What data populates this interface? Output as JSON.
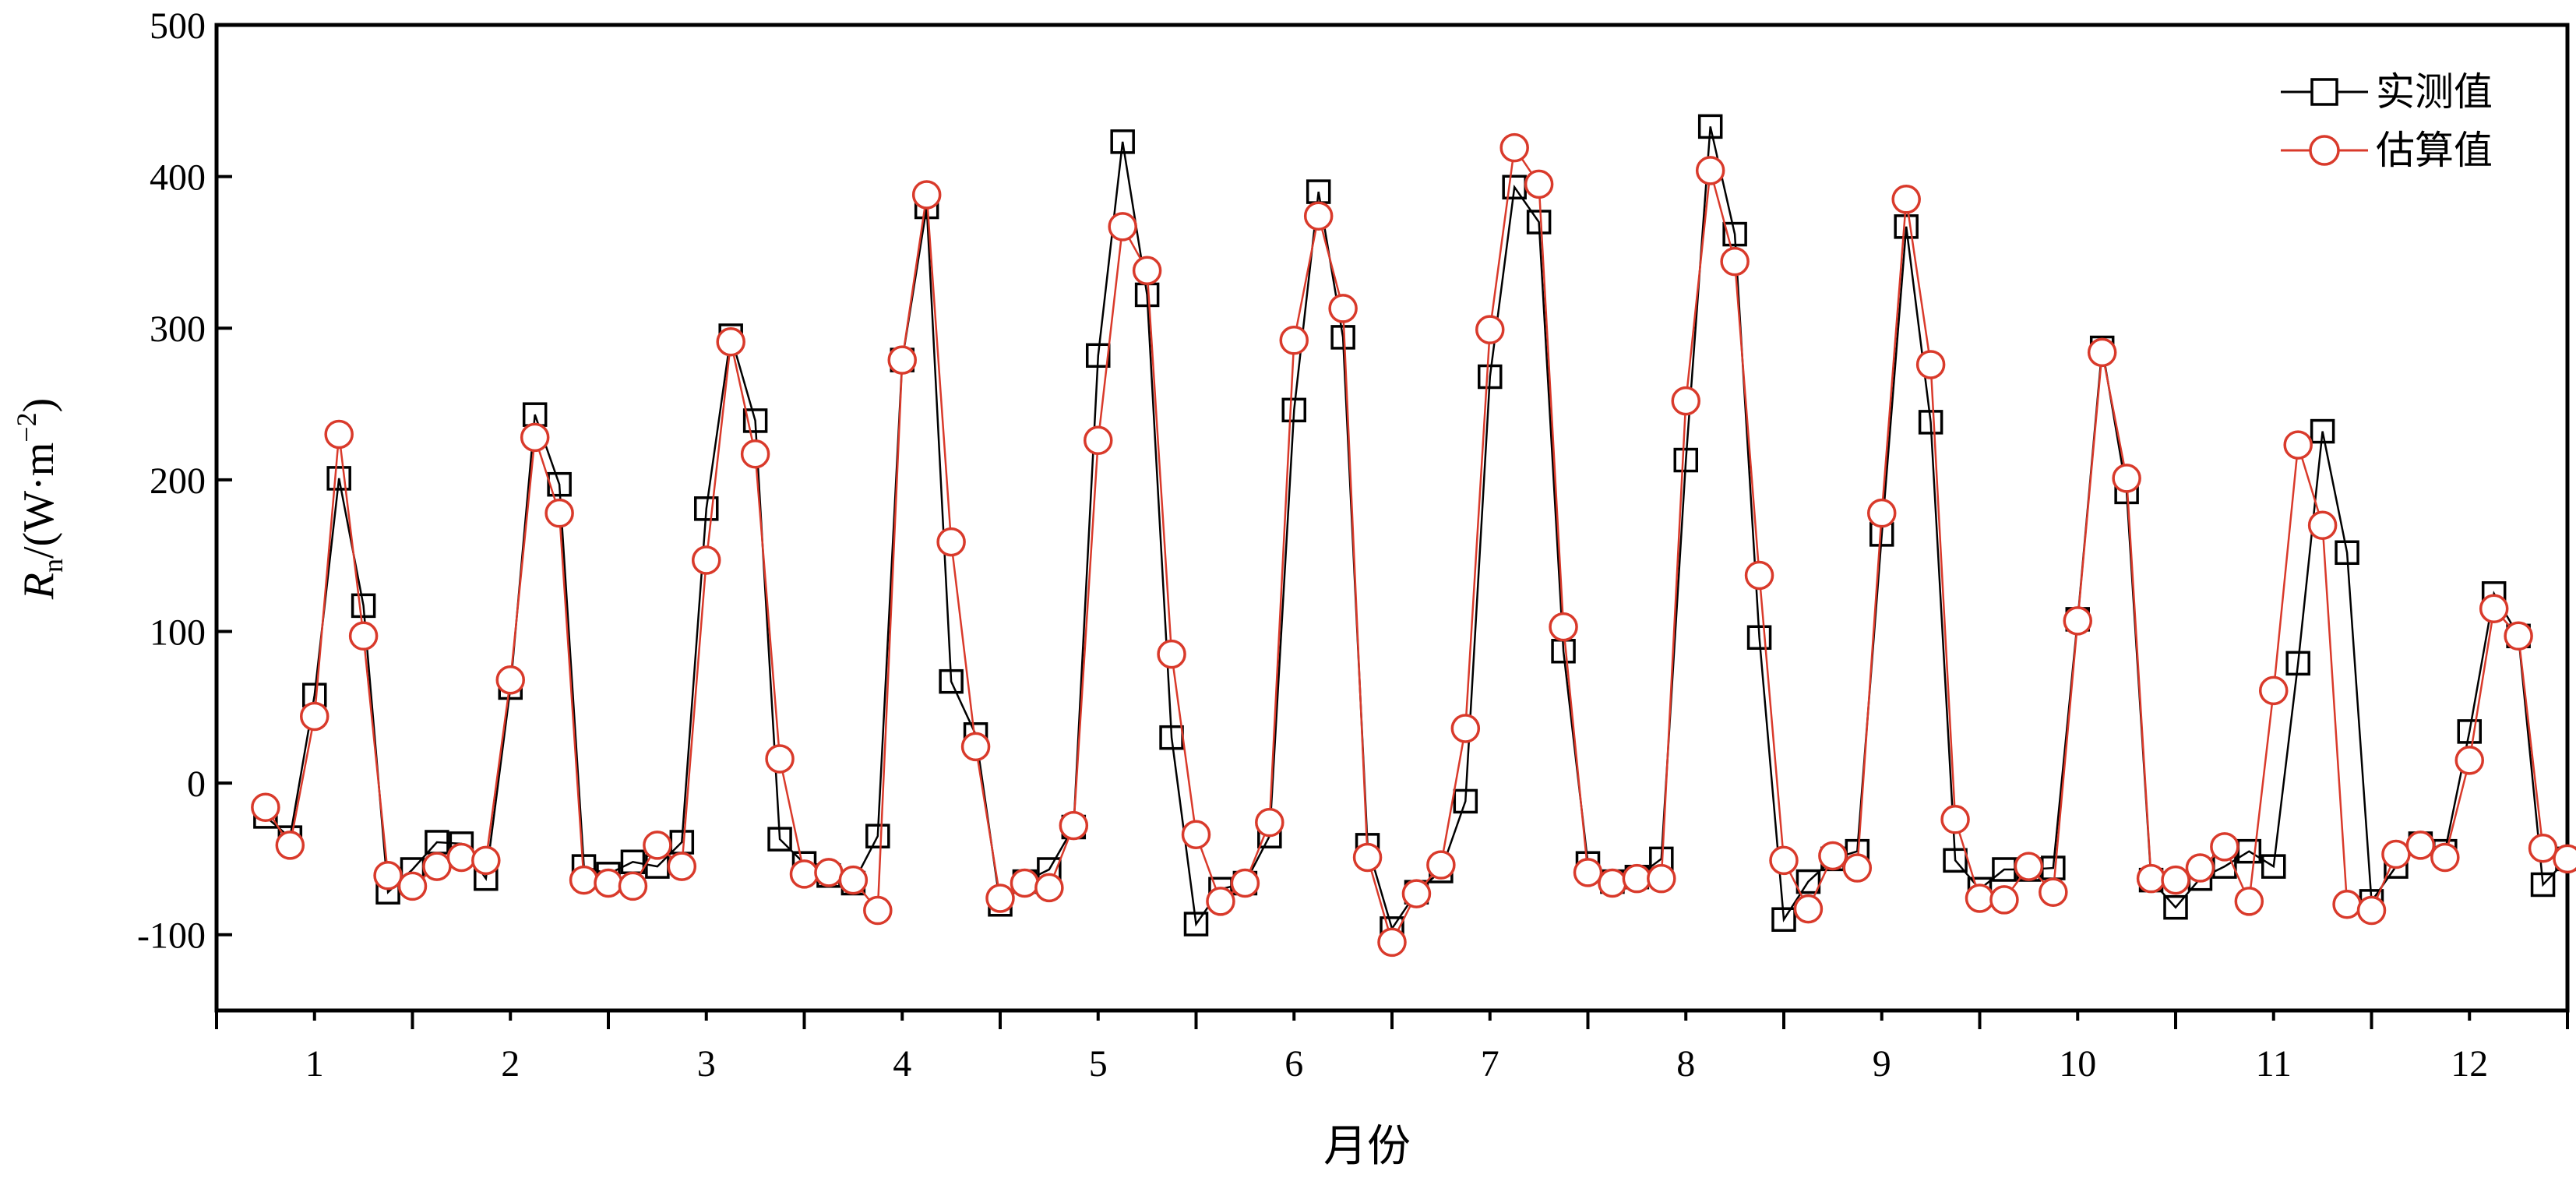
{
  "chart_data": {
    "type": "line",
    "xlabel": "月份",
    "ylabel_main": "R",
    "ylabel_sub": "n",
    "ylabel_unit": "/(W·m",
    "ylabel_sup": "−2",
    "ylabel_close": ")",
    "ylim": [
      -150,
      500
    ],
    "xlim": [
      0.5,
      12.5
    ],
    "yticks": [
      -100,
      0,
      100,
      200,
      300,
      400,
      500
    ],
    "month_labels": [
      "1",
      "2",
      "3",
      "4",
      "5",
      "6",
      "7",
      "8",
      "9",
      "10",
      "11",
      "12"
    ],
    "grid": false,
    "legend_position": "top-right",
    "series": [
      {
        "name": "实测值",
        "color": "#000000",
        "marker": "square",
        "x": [
          0.75,
          0.875,
          1.0,
          1.125,
          1.25,
          1.375,
          1.5,
          1.625,
          1.75,
          1.875,
          2.0,
          2.125,
          2.25,
          2.375,
          2.5,
          2.625,
          2.75,
          2.875,
          3.0,
          3.125,
          3.25,
          3.375,
          3.5,
          3.625,
          3.75,
          3.875,
          4.0,
          4.125,
          4.25,
          4.375,
          4.5,
          4.625,
          4.75,
          4.875,
          5.0,
          5.125,
          5.25,
          5.375,
          5.5,
          5.625,
          5.75,
          5.875,
          6.0,
          6.125,
          6.25,
          6.375,
          6.5,
          6.625,
          6.75,
          6.875,
          7.0,
          7.125,
          7.25,
          7.375,
          7.5,
          7.625,
          7.75,
          7.875,
          8.0,
          8.125,
          8.25,
          8.375,
          8.5,
          8.625,
          8.75,
          8.875,
          9.0,
          9.125,
          9.25,
          9.375,
          9.5,
          9.625,
          9.75,
          9.875,
          10.0,
          10.125,
          10.25,
          10.375,
          10.5,
          10.625,
          10.75,
          10.875,
          11.0,
          11.125,
          11.25,
          11.375,
          11.5,
          11.625,
          11.75,
          11.875,
          12.0,
          12.125,
          12.25,
          12.375,
          12.5
        ],
        "y": [
          -22,
          -36,
          58,
          201,
          117,
          -72,
          -57,
          -39,
          -40,
          -63,
          63,
          243,
          197,
          -55,
          -60,
          -52,
          -55,
          -39,
          181,
          295,
          239,
          -37,
          -53,
          -61,
          -66,
          -35,
          279,
          380,
          67,
          32,
          -80,
          -65,
          -57,
          -29,
          282,
          423,
          322,
          30,
          -93,
          -70,
          -66,
          -35,
          246,
          390,
          294,
          -41,
          -96,
          -72,
          -58,
          -12,
          268,
          393,
          370,
          87,
          -53,
          -65,
          -62,
          -50,
          213,
          433,
          362,
          96,
          -90,
          -65,
          -50,
          -45,
          164,
          367,
          238,
          -51,
          -70,
          -57,
          -57,
          -56,
          108,
          287,
          192,
          -64,
          -82,
          -63,
          -55,
          -45,
          -55,
          79,
          232,
          152,
          -78,
          -55,
          -40,
          -45,
          34,
          125,
          97,
          -67,
          -50
        ]
      },
      {
        "name": "估算值",
        "color": "#d93a2b",
        "marker": "circle",
        "x": [
          0.75,
          0.875,
          1.0,
          1.125,
          1.25,
          1.375,
          1.5,
          1.625,
          1.75,
          1.875,
          2.0,
          2.125,
          2.25,
          2.375,
          2.5,
          2.625,
          2.75,
          2.875,
          3.0,
          3.125,
          3.25,
          3.375,
          3.5,
          3.625,
          3.75,
          3.875,
          4.0,
          4.125,
          4.25,
          4.375,
          4.5,
          4.625,
          4.75,
          4.875,
          5.0,
          5.125,
          5.25,
          5.375,
          5.5,
          5.625,
          5.75,
          5.875,
          6.0,
          6.125,
          6.25,
          6.375,
          6.5,
          6.625,
          6.75,
          6.875,
          7.0,
          7.125,
          7.25,
          7.375,
          7.5,
          7.625,
          7.75,
          7.875,
          8.0,
          8.125,
          8.25,
          8.375,
          8.5,
          8.625,
          8.75,
          8.875,
          9.0,
          9.125,
          9.25,
          9.375,
          9.5,
          9.625,
          9.75,
          9.875,
          10.0,
          10.125,
          10.25,
          10.375,
          10.5,
          10.625,
          10.75,
          10.875,
          11.0,
          11.125,
          11.25,
          11.375,
          11.5,
          11.625,
          11.75,
          11.875,
          12.0,
          12.125,
          12.25,
          12.375,
          12.5
        ],
        "y": [
          -16,
          -41,
          44,
          230,
          97,
          -61,
          -68,
          -55,
          -49,
          -51,
          68,
          228,
          178,
          -64,
          -66,
          -68,
          -41,
          -55,
          147,
          291,
          217,
          16,
          -60,
          -59,
          -64,
          -84,
          279,
          388,
          159,
          24,
          -76,
          -66,
          -69,
          -28,
          226,
          367,
          338,
          85,
          -34,
          -78,
          -66,
          -26,
          292,
          374,
          313,
          -49,
          -105,
          -73,
          -54,
          36,
          299,
          419,
          395,
          103,
          -59,
          -66,
          -63,
          -63,
          252,
          404,
          344,
          137,
          -51,
          -83,
          -48,
          -56,
          178,
          385,
          276,
          -24,
          -76,
          -77,
          -55,
          -72,
          107,
          284,
          201,
          -63,
          -64,
          -56,
          -42,
          -78,
          61,
          223,
          170,
          -80,
          -84,
          -47,
          -41,
          -49,
          15,
          115,
          97,
          -43,
          -50
        ]
      }
    ]
  }
}
